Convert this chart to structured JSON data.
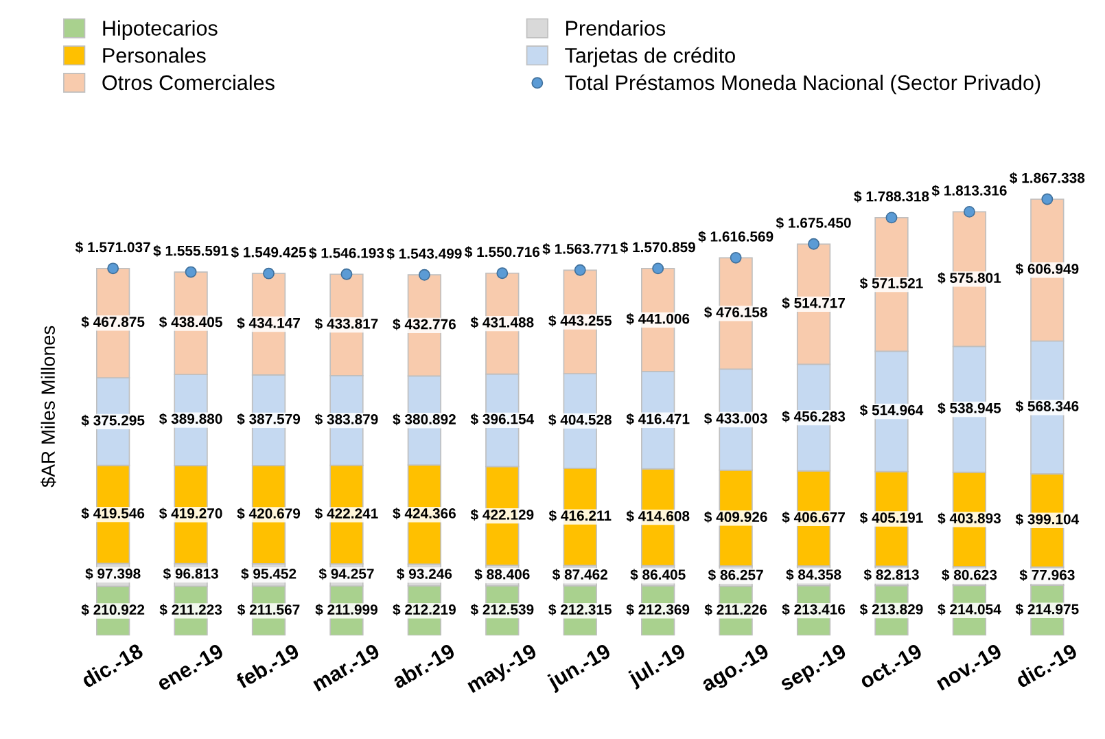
{
  "chart_data": {
    "type": "bar",
    "stacked": true,
    "ylabel": "$AR Miles Millones",
    "legend": "top",
    "grid": false,
    "tick_labels": "x",
    "categories": [
      "dic.-18",
      "ene.-19",
      "feb.-19",
      "mar.-19",
      "abr.-19",
      "may.-19",
      "jun.-19",
      "jul.-19",
      "ago.-19",
      "sep.-19",
      "oct.-19",
      "nov.-19",
      "dic.-19"
    ],
    "series": [
      {
        "name": "Hipotecarios",
        "color": "#a9d18e",
        "values": [
          210922,
          211223,
          211567,
          211999,
          212219,
          212539,
          212315,
          212369,
          211226,
          213416,
          213829,
          214054,
          214975
        ],
        "value_labels": [
          "$ 210.922",
          "$ 211.223",
          "$ 211.567",
          "$ 211.999",
          "$ 212.219",
          "$ 212.539",
          "$ 212.315",
          "$ 212.369",
          "$ 211.226",
          "$ 213.416",
          "$ 213.829",
          "$ 214.054",
          "$ 214.975"
        ]
      },
      {
        "name": "Prendarios",
        "color": "#d9d9d9",
        "values": [
          97398,
          96813,
          95452,
          94257,
          93246,
          88406,
          87462,
          86405,
          86257,
          84358,
          82813,
          80623,
          77963
        ],
        "value_labels": [
          "$ 97.398",
          "$ 96.813",
          "$ 95.452",
          "$ 94.257",
          "$ 93.246",
          "$ 88.406",
          "$ 87.462",
          "$ 86.405",
          "$ 86.257",
          "$ 84.358",
          "$ 82.813",
          "$ 80.623",
          "$ 77.963"
        ]
      },
      {
        "name": "Personales",
        "color": "#ffc000",
        "values": [
          419546,
          419270,
          420679,
          422241,
          424366,
          422129,
          416211,
          414608,
          409926,
          406677,
          405191,
          403893,
          399104
        ],
        "value_labels": [
          "$ 419.546",
          "$ 419.270",
          "$ 420.679",
          "$ 422.241",
          "$ 424.366",
          "$ 422.129",
          "$ 416.211",
          "$ 414.608",
          "$ 409.926",
          "$ 406.677",
          "$ 405.191",
          "$ 403.893",
          "$ 399.104"
        ]
      },
      {
        "name": "Tarjetas de crédito",
        "color": "#c5d9f1",
        "values": [
          375295,
          389880,
          387579,
          383879,
          380892,
          396154,
          404528,
          416471,
          433003,
          456283,
          514964,
          538945,
          568346
        ],
        "value_labels": [
          "$ 375.295",
          "$ 389.880",
          "$ 387.579",
          "$ 383.879",
          "$ 380.892",
          "$ 396.154",
          "$ 404.528",
          "$ 416.471",
          "$ 433.003",
          "$ 456.283",
          "$ 514.964",
          "$ 538.945",
          "$ 568.346"
        ]
      },
      {
        "name": "Otros Comerciales",
        "color": "#f8cbad",
        "values": [
          467875,
          438405,
          434147,
          433817,
          432776,
          431488,
          443255,
          441006,
          476158,
          514717,
          571521,
          575801,
          606949
        ],
        "value_labels": [
          "$ 467.875",
          "$ 438.405",
          "$ 434.147",
          "$ 433.817",
          "$ 432.776",
          "$ 431.488",
          "$ 443.255",
          "$ 441.006",
          "$ 476.158",
          "$ 514.717",
          "$ 571.521",
          "$ 575.801",
          "$ 606.949"
        ]
      },
      {
        "name": "Total Préstamos Moneda Nacional (Sector Privado)",
        "type": "scatter",
        "marker": "circle",
        "color": "#5b9bd5",
        "values": [
          1571037,
          1555591,
          1549425,
          1546193,
          1543499,
          1550716,
          1563771,
          1570859,
          1616569,
          1675450,
          1788318,
          1813316,
          1867338
        ],
        "value_labels": [
          "$ 1.571.037",
          "$ 1.555.591",
          "$ 1.549.425",
          "$ 1.546.193",
          "$ 1.543.499",
          "$ 1.550.716",
          "$ 1.563.771",
          "$ 1.570.859",
          "$ 1.616.569",
          "$ 1.675.450",
          "$ 1.788.318",
          "$ 1.813.316",
          "$ 1.867.338"
        ]
      }
    ]
  }
}
